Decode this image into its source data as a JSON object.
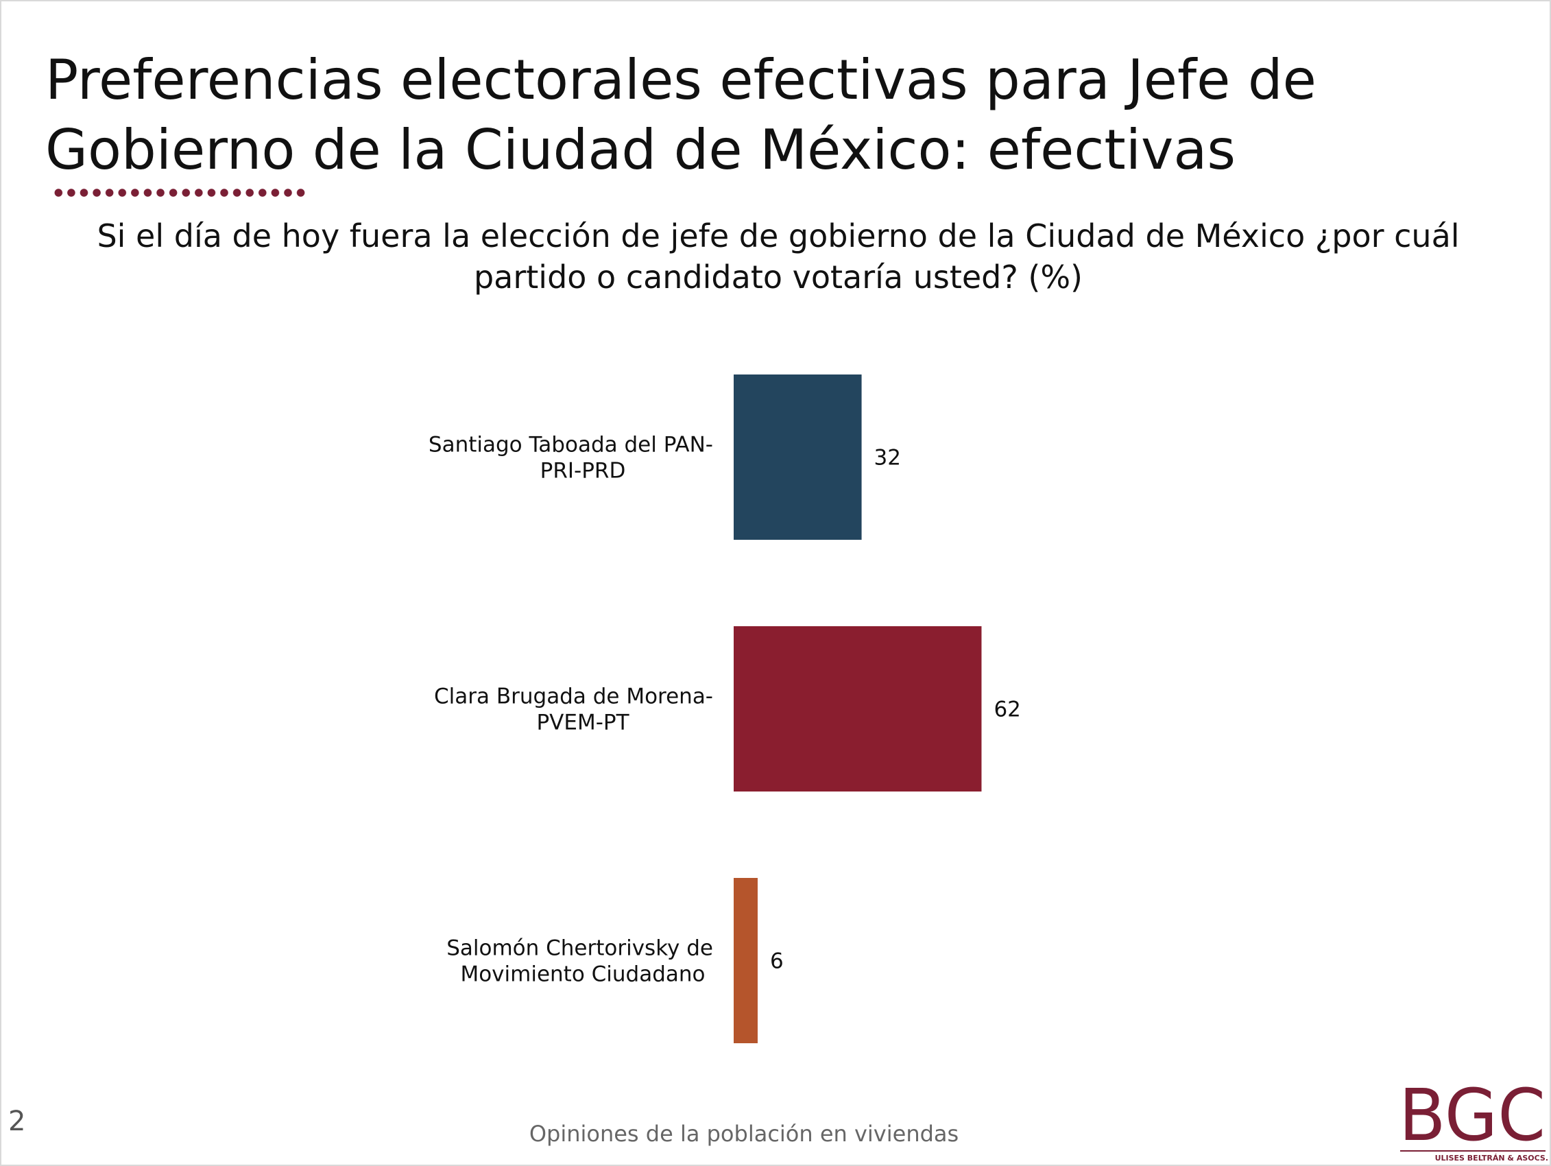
{
  "page": {
    "title": "Preferencias electorales efectivas para Jefe de Gobierno de la Ciudad de México: efectivas",
    "subtitle": "Si el día de hoy fuera la elección de jefe de gobierno de la Ciudad de México ¿por cuál partido o candidato votaría usted? (%)",
    "page_number": "2",
    "footer": "Opiniones de la población en viviendas",
    "logo": {
      "letters": "BGC",
      "tagline": "ULISES BELTRÁN & ASOCS.",
      "color": "#7a1f35"
    },
    "accent_color": "#7a1f35"
  },
  "chart_data": {
    "type": "bar",
    "orientation": "horizontal",
    "title": "",
    "xlabel": "",
    "ylabel": "",
    "xlim": [
      0,
      100
    ],
    "grid": false,
    "legend": "none",
    "categories": [
      [
        "Santiago Taboada del PAN-",
        "PRI-PRD"
      ],
      [
        "Clara Brugada de Morena-",
        "PVEM-PT"
      ],
      [
        "Salomón Chertorivsky de",
        "Movimiento Ciudadano"
      ]
    ],
    "values": [
      32,
      62,
      6
    ],
    "value_labels": [
      "32",
      "62",
      "6"
    ],
    "colors": [
      "#23455e",
      "#8a1e2f",
      "#b5552c"
    ]
  }
}
